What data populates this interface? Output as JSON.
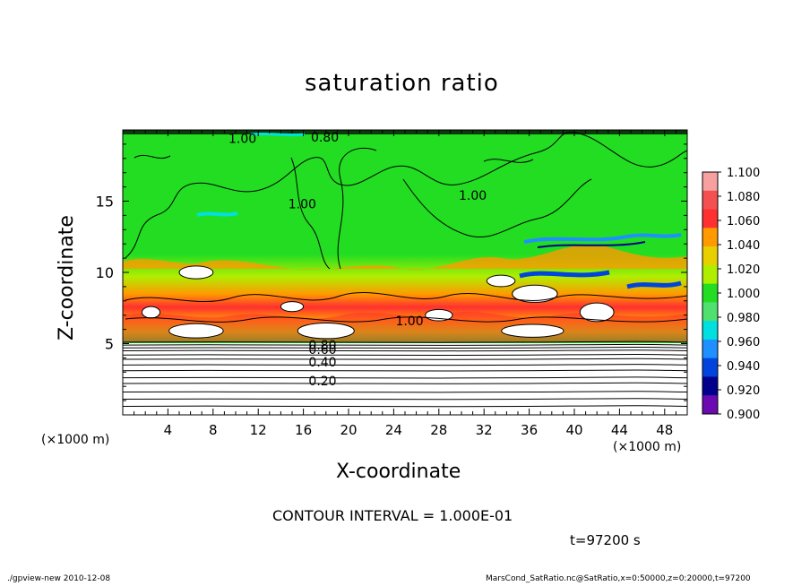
{
  "header": {
    "title": "saturation ratio"
  },
  "footer": {
    "contour_interval": "CONTOUR INTERVAL = 1.000E-01",
    "time": "t=97200 s",
    "program": "./gpview-new   2010-12-08",
    "source": "MarsCond_SatRatio.nc@SatRatio,x=0:50000,z=0:20000,t=97200"
  },
  "colors": {
    "ramp": [
      "#6a0ab0",
      "#00008c",
      "#0044dd",
      "#1e90ff",
      "#00e0e0",
      "#50e070",
      "#22dd22",
      "#b0ee00",
      "#e8d000",
      "#ff9a00",
      "#ff3030",
      "#f55050",
      "#f7a0a0"
    ]
  },
  "chart_data": {
    "type": "heatmap",
    "title": "saturation ratio",
    "xlabel": "X-coordinate",
    "ylabel": "Z-coordinate",
    "x_unit": "(×1000 m)",
    "x_unit_right": "(×1000 m)",
    "xlim": [
      0,
      50
    ],
    "ylim": [
      0,
      20
    ],
    "x_ticks": [
      4,
      8,
      12,
      16,
      20,
      24,
      28,
      32,
      36,
      40,
      44,
      48
    ],
    "y_ticks": [
      5,
      10,
      15
    ],
    "colorbar": {
      "levels": [
        0.9,
        0.92,
        0.94,
        0.96,
        0.98,
        1.0,
        1.02,
        1.04,
        1.06,
        1.08,
        1.1
      ],
      "labels": [
        "0.900",
        "0.920",
        "0.940",
        "0.960",
        "0.980",
        "1.000",
        "1.020",
        "1.040",
        "1.060",
        "1.080",
        "1.100"
      ]
    },
    "contour_interval": 0.1,
    "contour_labels": [
      {
        "x": 17.7,
        "z": 2.4,
        "text": "0.20"
      },
      {
        "x": 17.7,
        "z": 3.7,
        "text": "0.40"
      },
      {
        "x": 17.7,
        "z": 4.6,
        "text": "0.60"
      },
      {
        "x": 17.7,
        "z": 4.9,
        "text": "0.80"
      },
      {
        "x": 10.6,
        "z": 19.4,
        "text": "1.00"
      },
      {
        "x": 17.9,
        "z": 19.5,
        "text": "0.80"
      },
      {
        "x": 31.0,
        "z": 15.4,
        "text": "1.00"
      },
      {
        "x": 15.9,
        "z": 14.8,
        "text": "1.00"
      },
      {
        "x": 25.4,
        "z": 6.6,
        "text": "1.00"
      }
    ],
    "isolines_z": [
      0.6,
      1.1,
      1.6,
      2.2,
      2.6,
      3.1,
      3.5,
      3.9,
      4.2,
      4.5,
      4.7,
      4.9,
      5.1
    ],
    "dry_pockets": [
      {
        "x": 6.5,
        "z": 5.9,
        "w": 4.8,
        "h": 1.0
      },
      {
        "x": 18.0,
        "z": 5.9,
        "w": 5.0,
        "h": 1.1
      },
      {
        "x": 36.3,
        "z": 5.9,
        "w": 5.5,
        "h": 0.9
      },
      {
        "x": 6.5,
        "z": 10.0,
        "w": 3.0,
        "h": 0.9
      },
      {
        "x": 36.5,
        "z": 8.5,
        "w": 4.0,
        "h": 1.2
      },
      {
        "x": 33.5,
        "z": 9.4,
        "w": 2.5,
        "h": 0.8
      },
      {
        "x": 42.0,
        "z": 7.2,
        "w": 3.0,
        "h": 1.3
      },
      {
        "x": 28.0,
        "z": 7.0,
        "w": 2.4,
        "h": 0.8
      },
      {
        "x": 2.5,
        "z": 7.2,
        "w": 1.6,
        "h": 0.8
      },
      {
        "x": 15.0,
        "z": 7.6,
        "w": 2.0,
        "h": 0.7
      }
    ]
  }
}
